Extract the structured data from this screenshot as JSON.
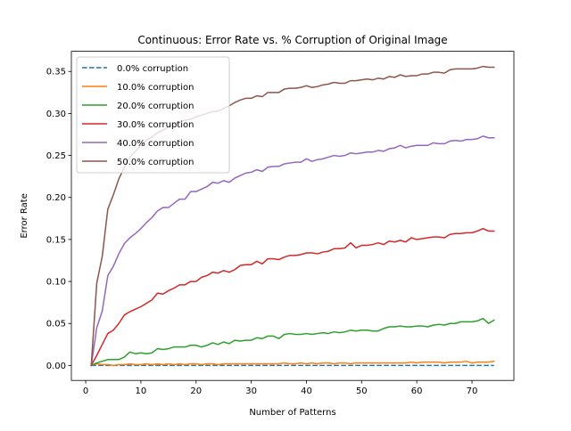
{
  "chart_data": {
    "type": "line",
    "title": "Continuous: Error Rate vs. % Corruption of Original Image",
    "xlabel": "Number of Patterns",
    "ylabel": "Error Rate",
    "xlim": [
      -2.6,
      77.6
    ],
    "ylim": [
      -0.0178,
      0.374
    ],
    "xticks": [
      0,
      10,
      20,
      30,
      40,
      50,
      60,
      70
    ],
    "yticks": [
      "0.00",
      "0.05",
      "0.10",
      "0.15",
      "0.20",
      "0.25",
      "0.30",
      "0.35"
    ],
    "grid": false,
    "legend_position": "upper-left",
    "x": [
      1,
      2,
      3,
      4,
      5,
      6,
      7,
      8,
      9,
      10,
      11,
      12,
      13,
      14,
      15,
      16,
      17,
      18,
      19,
      20,
      21,
      22,
      23,
      24,
      25,
      26,
      27,
      28,
      29,
      30,
      31,
      32,
      33,
      34,
      35,
      36,
      37,
      38,
      39,
      40,
      41,
      42,
      43,
      44,
      45,
      46,
      47,
      48,
      49,
      50,
      51,
      52,
      53,
      54,
      55,
      56,
      57,
      58,
      59,
      60,
      61,
      62,
      63,
      64,
      65,
      66,
      67,
      68,
      69,
      70,
      71,
      72,
      73,
      74
    ],
    "series": [
      {
        "name": "0.0% corruption",
        "color": "#1f77b4",
        "dashed": true,
        "values": [
          0,
          0,
          0,
          0,
          0,
          0,
          0,
          0,
          0,
          0,
          0,
          0,
          0,
          0,
          0,
          0,
          0,
          0,
          0,
          0,
          0,
          0,
          0,
          0,
          0,
          0,
          0,
          0,
          0,
          0,
          0,
          0,
          0,
          0,
          0,
          0,
          0,
          0,
          0,
          0,
          0,
          0,
          0,
          0,
          0,
          0,
          0,
          0,
          0,
          0,
          0,
          0,
          0,
          0,
          0,
          0,
          0,
          0,
          0,
          0,
          0,
          0,
          0,
          0,
          0,
          0,
          0,
          0,
          0,
          0,
          0,
          0,
          0,
          0
        ]
      },
      {
        "name": "10.0% corruption",
        "color": "#ff7f0e",
        "dashed": false,
        "values": [
          0.0,
          0.002,
          0.001,
          0.001,
          0.0,
          0.001,
          0.001,
          0.002,
          0.001,
          0.001,
          0.002,
          0.001,
          0.002,
          0.001,
          0.002,
          0.001,
          0.002,
          0.001,
          0.002,
          0.002,
          0.001,
          0.002,
          0.002,
          0.001,
          0.002,
          0.002,
          0.002,
          0.002,
          0.002,
          0.002,
          0.002,
          0.002,
          0.002,
          0.002,
          0.002,
          0.003,
          0.002,
          0.002,
          0.003,
          0.002,
          0.003,
          0.002,
          0.003,
          0.003,
          0.002,
          0.003,
          0.003,
          0.002,
          0.003,
          0.003,
          0.003,
          0.003,
          0.003,
          0.003,
          0.003,
          0.003,
          0.003,
          0.003,
          0.004,
          0.003,
          0.004,
          0.004,
          0.004,
          0.004,
          0.003,
          0.004,
          0.004,
          0.004,
          0.005,
          0.003,
          0.004,
          0.004,
          0.004,
          0.005
        ]
      },
      {
        "name": "20.0% corruption",
        "color": "#2ca02c",
        "dashed": false,
        "values": [
          0.0,
          0.003,
          0.005,
          0.007,
          0.007,
          0.007,
          0.01,
          0.016,
          0.014,
          0.015,
          0.014,
          0.015,
          0.02,
          0.019,
          0.02,
          0.022,
          0.022,
          0.022,
          0.024,
          0.024,
          0.022,
          0.024,
          0.027,
          0.025,
          0.028,
          0.026,
          0.03,
          0.029,
          0.03,
          0.03,
          0.033,
          0.032,
          0.035,
          0.035,
          0.032,
          0.037,
          0.038,
          0.037,
          0.037,
          0.038,
          0.037,
          0.038,
          0.039,
          0.038,
          0.04,
          0.039,
          0.04,
          0.042,
          0.041,
          0.042,
          0.042,
          0.041,
          0.041,
          0.044,
          0.046,
          0.046,
          0.047,
          0.046,
          0.046,
          0.047,
          0.047,
          0.046,
          0.048,
          0.049,
          0.048,
          0.05,
          0.05,
          0.052,
          0.052,
          0.052,
          0.053,
          0.056,
          0.05,
          0.054
        ]
      },
      {
        "name": "30.0% corruption",
        "color": "#d62728",
        "dashed": false,
        "values": [
          0.0,
          0.012,
          0.025,
          0.038,
          0.042,
          0.05,
          0.06,
          0.064,
          0.067,
          0.07,
          0.074,
          0.078,
          0.086,
          0.085,
          0.089,
          0.092,
          0.096,
          0.096,
          0.1,
          0.1,
          0.105,
          0.107,
          0.111,
          0.11,
          0.113,
          0.111,
          0.114,
          0.119,
          0.12,
          0.12,
          0.124,
          0.121,
          0.127,
          0.127,
          0.126,
          0.129,
          0.131,
          0.131,
          0.132,
          0.134,
          0.134,
          0.133,
          0.135,
          0.136,
          0.139,
          0.139,
          0.14,
          0.146,
          0.14,
          0.143,
          0.143,
          0.144,
          0.146,
          0.144,
          0.148,
          0.147,
          0.149,
          0.147,
          0.152,
          0.15,
          0.151,
          0.152,
          0.153,
          0.153,
          0.152,
          0.156,
          0.157,
          0.157,
          0.158,
          0.158,
          0.16,
          0.163,
          0.16,
          0.16
        ]
      },
      {
        "name": "40.0% corruption",
        "color": "#9467bd",
        "dashed": false,
        "values": [
          0.0,
          0.045,
          0.065,
          0.107,
          0.118,
          0.133,
          0.145,
          0.152,
          0.157,
          0.163,
          0.17,
          0.176,
          0.184,
          0.188,
          0.188,
          0.193,
          0.198,
          0.198,
          0.207,
          0.207,
          0.21,
          0.213,
          0.218,
          0.217,
          0.22,
          0.218,
          0.223,
          0.226,
          0.229,
          0.23,
          0.233,
          0.231,
          0.236,
          0.237,
          0.237,
          0.24,
          0.241,
          0.242,
          0.242,
          0.246,
          0.243,
          0.245,
          0.246,
          0.248,
          0.25,
          0.249,
          0.25,
          0.253,
          0.252,
          0.253,
          0.254,
          0.254,
          0.256,
          0.255,
          0.258,
          0.259,
          0.262,
          0.259,
          0.261,
          0.262,
          0.262,
          0.262,
          0.265,
          0.264,
          0.264,
          0.267,
          0.268,
          0.267,
          0.269,
          0.269,
          0.27,
          0.273,
          0.271,
          0.271
        ]
      },
      {
        "name": "50.0% corruption",
        "color": "#8c564b",
        "dashed": false,
        "values": [
          0.0,
          0.098,
          0.13,
          0.186,
          0.203,
          0.222,
          0.236,
          0.248,
          0.255,
          0.262,
          0.268,
          0.272,
          0.277,
          0.28,
          0.284,
          0.287,
          0.29,
          0.292,
          0.293,
          0.296,
          0.298,
          0.3,
          0.302,
          0.303,
          0.306,
          0.309,
          0.313,
          0.316,
          0.318,
          0.318,
          0.321,
          0.32,
          0.325,
          0.325,
          0.325,
          0.329,
          0.33,
          0.33,
          0.331,
          0.333,
          0.331,
          0.332,
          0.334,
          0.335,
          0.337,
          0.336,
          0.336,
          0.339,
          0.339,
          0.34,
          0.341,
          0.34,
          0.342,
          0.341,
          0.344,
          0.343,
          0.346,
          0.344,
          0.345,
          0.345,
          0.347,
          0.347,
          0.349,
          0.349,
          0.348,
          0.352,
          0.353,
          0.353,
          0.353,
          0.353,
          0.354,
          0.356,
          0.355,
          0.355
        ]
      }
    ]
  }
}
